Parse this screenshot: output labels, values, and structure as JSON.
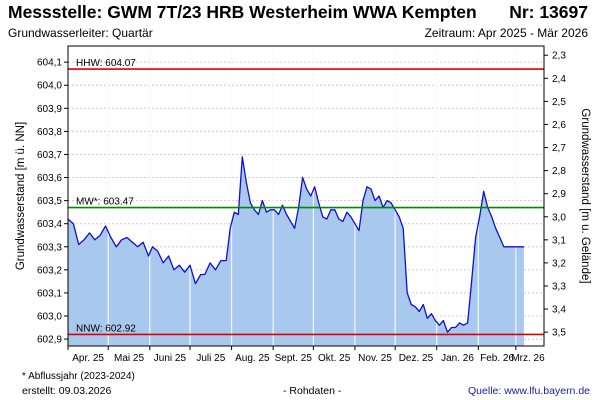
{
  "header": {
    "title": "Messstelle: GWM 7T/23 HRB Westerheim WWA Kempten",
    "number": "Nr: 13697",
    "subtitle_left": "Grundwasserleiter: Quartär",
    "subtitle_right": "Zeitraum: Apr 2025 - Mär 2026"
  },
  "footer": {
    "footnote": "* Abflussjahr (2023-2024)",
    "created": "erstellt:  09.03.2026",
    "raw": "- Rohdaten -",
    "source": "Quelle:  www.lfu.bayern.de"
  },
  "colors": {
    "fill": "#a8c8ee",
    "line": "#1010cc",
    "hhw": "#dd0000",
    "nnw": "#dd0000",
    "mw": "#008800",
    "grid": "#cccccc"
  },
  "chart_data": {
    "type": "area",
    "ylabel_left": "Grundwasserstand [m ü. NN]",
    "ylabel_right": "Grundwasserstand [m u. Gelände]",
    "ylim": [
      602.87,
      604.17
    ],
    "yticks_left": [
      "602,9",
      "603,0",
      "603,1",
      "603,2",
      "603,3",
      "603,4",
      "603,5",
      "603,6",
      "603,7",
      "603,8",
      "603,9",
      "604,0",
      "604,1"
    ],
    "yticks_right": [
      "2,3",
      "2,4",
      "2,5",
      "2,6",
      "2,7",
      "2,8",
      "2,9",
      "3,0",
      "3,1",
      "3,2",
      "3,3",
      "3,4",
      "3,5"
    ],
    "xticks": [
      "Apr. 25",
      "Mai 25",
      "Juni 25",
      "Juli 25",
      "Aug. 25",
      "Sept. 25",
      "Okt. 25",
      "Nov. 25",
      "Dez. 25",
      "Jan. 26",
      "Feb. 26",
      "Mrz. 26"
    ],
    "grid": true,
    "reference_lines": [
      {
        "label": "HHW: 604.07",
        "value": 604.07
      },
      {
        "label": "MW*: 603.47",
        "value": 603.47
      },
      {
        "label": "NNW: 602.92",
        "value": 602.92
      }
    ],
    "series": [
      {
        "x": [
          "2025-04-01",
          "2025-04-05",
          "2025-04-09",
          "2025-04-13",
          "2025-04-17",
          "2025-04-21",
          "2025-04-25",
          "2025-04-29",
          "2025-05-03",
          "2025-05-07",
          "2025-05-11",
          "2025-05-15",
          "2025-05-19",
          "2025-05-23",
          "2025-05-27",
          "2025-05-31",
          "2025-06-03",
          "2025-06-07",
          "2025-06-11",
          "2025-06-15",
          "2025-06-19",
          "2025-06-23",
          "2025-06-27",
          "2025-07-01",
          "2025-07-05",
          "2025-07-09",
          "2025-07-12",
          "2025-07-16",
          "2025-07-20",
          "2025-07-24",
          "2025-07-28",
          "2025-07-31",
          "2025-08-03",
          "2025-08-06",
          "2025-08-09",
          "2025-08-12",
          "2025-08-15",
          "2025-08-18",
          "2025-08-21",
          "2025-08-24",
          "2025-08-27",
          "2025-08-30",
          "2025-09-02",
          "2025-09-05",
          "2025-09-08",
          "2025-09-11",
          "2025-09-14",
          "2025-09-17",
          "2025-09-20",
          "2025-09-23",
          "2025-09-26",
          "2025-09-29",
          "2025-10-02",
          "2025-10-05",
          "2025-10-08",
          "2025-10-11",
          "2025-10-14",
          "2025-10-17",
          "2025-10-20",
          "2025-10-23",
          "2025-10-26",
          "2025-10-29",
          "2025-11-01",
          "2025-11-04",
          "2025-11-07",
          "2025-11-10",
          "2025-11-13",
          "2025-11-16",
          "2025-11-19",
          "2025-11-22",
          "2025-11-25",
          "2025-11-28",
          "2025-12-01",
          "2025-12-04",
          "2025-12-07",
          "2025-12-10",
          "2025-12-13",
          "2025-12-16",
          "2025-12-19",
          "2025-12-22",
          "2025-12-25",
          "2025-12-28",
          "2025-12-31",
          "2026-01-03",
          "2026-01-06",
          "2026-01-09",
          "2026-01-12",
          "2026-01-15",
          "2026-01-18",
          "2026-01-21",
          "2026-01-24",
          "2026-01-27",
          "2026-01-30",
          "2026-02-02",
          "2026-02-05",
          "2026-02-08",
          "2026-02-11",
          "2026-02-14",
          "2026-02-17",
          "2026-02-20",
          "2026-02-23",
          "2026-02-26",
          "2026-03-01",
          "2026-03-04",
          "2026-03-07"
        ],
        "y": [
          603.42,
          603.4,
          603.31,
          603.33,
          603.36,
          603.33,
          603.35,
          603.39,
          603.34,
          603.3,
          603.33,
          603.34,
          603.32,
          603.3,
          603.32,
          603.26,
          603.3,
          603.28,
          603.23,
          603.26,
          603.2,
          603.22,
          603.19,
          603.22,
          603.14,
          603.18,
          603.18,
          603.23,
          603.2,
          603.24,
          603.24,
          603.38,
          603.45,
          603.44,
          603.69,
          603.58,
          603.49,
          603.46,
          603.44,
          603.5,
          603.45,
          603.46,
          603.46,
          603.44,
          603.48,
          603.44,
          603.41,
          603.38,
          603.47,
          603.6,
          603.55,
          603.52,
          603.56,
          603.49,
          603.43,
          603.42,
          603.46,
          603.46,
          603.42,
          603.41,
          603.45,
          603.43,
          603.4,
          603.37,
          603.5,
          603.56,
          603.55,
          603.5,
          603.52,
          603.47,
          603.5,
          603.49,
          603.46,
          603.43,
          603.38,
          603.1,
          603.05,
          603.04,
          603.02,
          603.05,
          602.99,
          603.01,
          602.98,
          602.96,
          602.98,
          602.93,
          602.95,
          602.95,
          602.97,
          602.96,
          602.97,
          603.15,
          603.34,
          603.43,
          603.54,
          603.47,
          603.43,
          603.38,
          603.34,
          603.3,
          603.3,
          603.3,
          603.3,
          603.3,
          603.3
        ]
      }
    ]
  }
}
